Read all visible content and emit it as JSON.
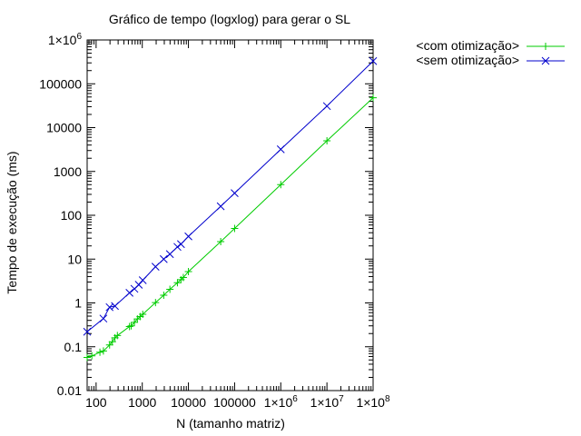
{
  "chart_data": {
    "type": "line",
    "title": "Gráfico de tempo (logxlog) para gerar o SL",
    "xlabel": "N (tamanho matriz)",
    "ylabel": "Tempo de execução (ms)",
    "x_scale": "log",
    "y_scale": "log",
    "xlim": [
      64,
      100000000
    ],
    "ylim": [
      0.01,
      1000000
    ],
    "grid": false,
    "legend_position": "top-right, outside plot",
    "x_ticks": [
      {
        "value": 100,
        "label": "100"
      },
      {
        "value": 1000,
        "label": "1000"
      },
      {
        "value": 10000,
        "label": "10000"
      },
      {
        "value": 100000,
        "label": "100000"
      },
      {
        "value": 1000000,
        "label": "1×10",
        "exp": "6"
      },
      {
        "value": 10000000,
        "label": "1×10",
        "exp": "7"
      },
      {
        "value": 100000000,
        "label": "1×10",
        "exp": "8"
      }
    ],
    "y_ticks": [
      {
        "value": 0.01,
        "label": "0.01"
      },
      {
        "value": 0.1,
        "label": "0.1"
      },
      {
        "value": 1,
        "label": "1"
      },
      {
        "value": 10,
        "label": "10"
      },
      {
        "value": 100,
        "label": "100"
      },
      {
        "value": 1000,
        "label": "1000"
      },
      {
        "value": 10000,
        "label": "10000"
      },
      {
        "value": 100000,
        "label": "100000"
      },
      {
        "value": 1000000,
        "label": "1×10",
        "exp": "6"
      }
    ],
    "series": [
      {
        "name": "<com otimização>",
        "color": "#00cc00",
        "marker": "plus",
        "points": [
          [
            64,
            0.057
          ],
          [
            81,
            0.062
          ],
          [
            121,
            0.075
          ],
          [
            144,
            0.08
          ],
          [
            196,
            0.11
          ],
          [
            225,
            0.13
          ],
          [
            256,
            0.16
          ],
          [
            289,
            0.18
          ],
          [
            529,
            0.29
          ],
          [
            576,
            0.3
          ],
          [
            676,
            0.36
          ],
          [
            784,
            0.43
          ],
          [
            900,
            0.49
          ],
          [
            1024,
            0.55
          ],
          [
            1936,
            1.02
          ],
          [
            2916,
            1.5
          ],
          [
            3969,
            2.05
          ],
          [
            5776,
            2.9
          ],
          [
            6889,
            3.4
          ],
          [
            7744,
            3.8
          ],
          [
            10000,
            5.2
          ],
          [
            50000,
            25
          ],
          [
            100000,
            50
          ],
          [
            1000000,
            500
          ],
          [
            10000000,
            5000
          ],
          [
            100000000,
            48000
          ]
        ]
      },
      {
        "name": "<sem otimização>",
        "color": "#0000cc",
        "marker": "cross",
        "points": [
          [
            64,
            0.22
          ],
          [
            144,
            0.44
          ],
          [
            196,
            0.8
          ],
          [
            256,
            0.85
          ],
          [
            529,
            1.7
          ],
          [
            676,
            2.1
          ],
          [
            841,
            2.6
          ],
          [
            1024,
            3.3
          ],
          [
            1936,
            6.7
          ],
          [
            2916,
            10
          ],
          [
            3969,
            13
          ],
          [
            5776,
            19
          ],
          [
            6889,
            22
          ],
          [
            10000,
            33
          ],
          [
            50000,
            160
          ],
          [
            100000,
            320
          ],
          [
            1000000,
            3200
          ],
          [
            10000000,
            31000
          ],
          [
            100000000,
            330000
          ]
        ]
      }
    ]
  }
}
